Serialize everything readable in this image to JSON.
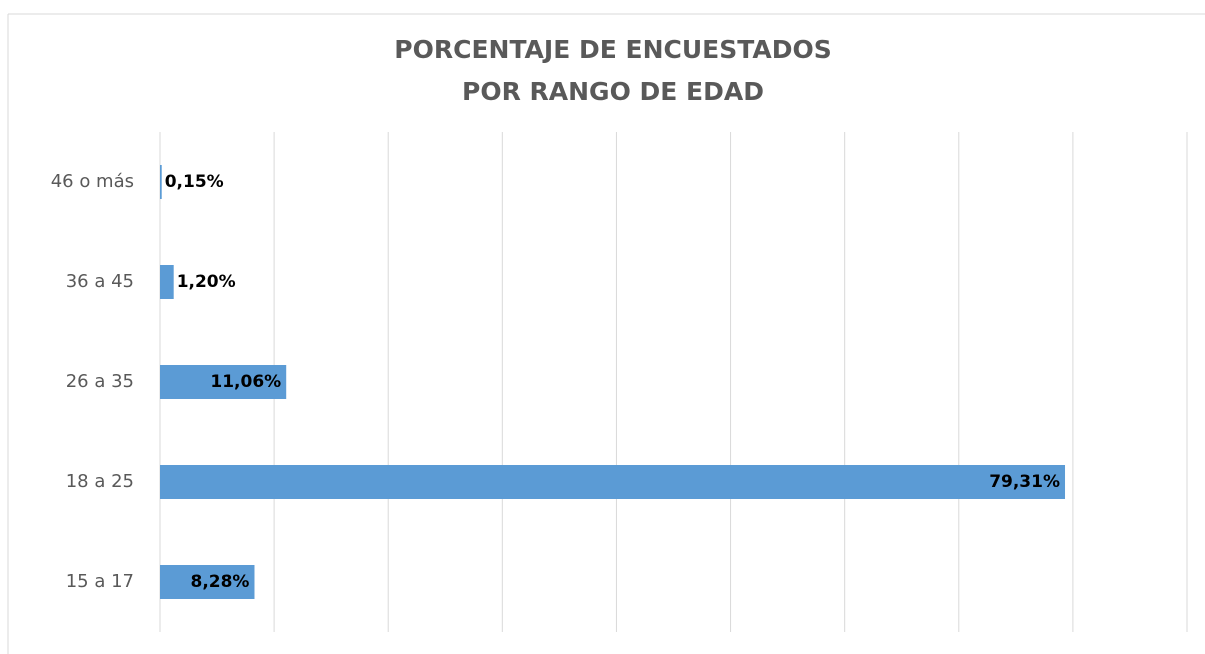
{
  "chart_data": {
    "type": "hbar",
    "title": [
      "PORCENTAJE DE ENCUESTADOS",
      "POR RANGO DE EDAD"
    ],
    "categories": [
      "46 o más",
      "36 a 45",
      "26 a 35",
      "18 a 25",
      "15 a 17"
    ],
    "values": [
      0.15,
      1.2,
      11.06,
      79.31,
      8.28
    ],
    "value_labels": [
      "0,15%",
      "1,20%",
      "11,06%",
      "79,31%",
      "8,28%"
    ],
    "color": "#5b9bd5",
    "xlim": [
      0,
      90
    ],
    "xticks": [
      0,
      10,
      20,
      30,
      40,
      50,
      60,
      70,
      80,
      90
    ],
    "grid": true
  }
}
